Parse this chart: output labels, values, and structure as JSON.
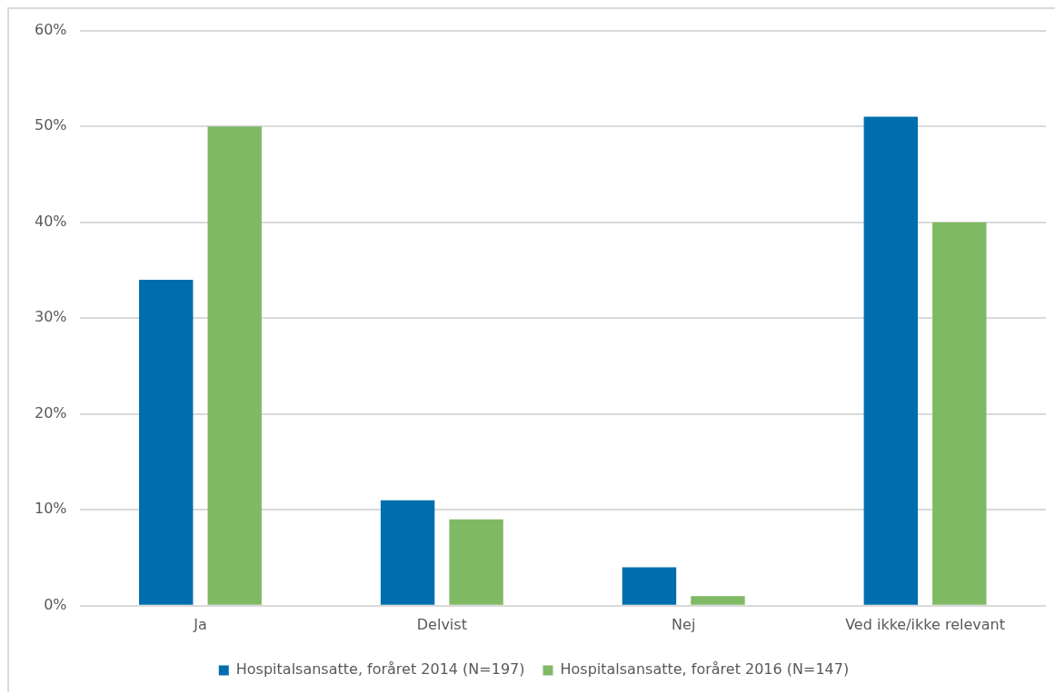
{
  "chart_data": {
    "type": "bar",
    "categories": [
      "Ja",
      "Delvist",
      "Nej",
      "Ved ikke/ikke relevant"
    ],
    "series": [
      {
        "name": "Hospitalsansatte, foråret 2014 (N=197)",
        "color": "#006eae",
        "values": [
          34,
          11,
          4,
          51
        ]
      },
      {
        "name": "Hospitalsansatte, foråret 2016 (N=147)",
        "color": "#80b964",
        "values": [
          50,
          9,
          1,
          40
        ]
      }
    ],
    "ylim": [
      0,
      60
    ],
    "yticks": [
      {
        "value": 0,
        "label": "0%"
      },
      {
        "value": 10,
        "label": "10%"
      },
      {
        "value": 20,
        "label": "20%"
      },
      {
        "value": 30,
        "label": "30%"
      },
      {
        "value": 40,
        "label": "40%"
      },
      {
        "value": 50,
        "label": "50%"
      },
      {
        "value": 60,
        "label": "60%"
      }
    ],
    "grid": "y",
    "legend": "bottom"
  }
}
